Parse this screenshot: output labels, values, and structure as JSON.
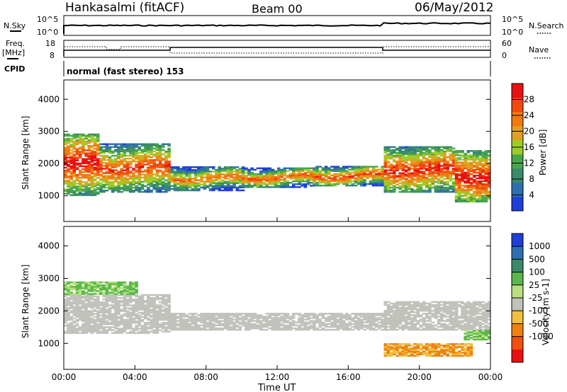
{
  "header": {
    "station": "Hankasalmi (fitACF)",
    "beam": "Beam 00",
    "date": "06/May/2012"
  },
  "noise_panel": {
    "left_label": "N.Sky",
    "left_ticks": [
      "10^5",
      "10^0"
    ],
    "right_ticks": [
      "10^5",
      "10^0"
    ],
    "right_label": "N.Search"
  },
  "freq_panel": {
    "left_label_line1": "Freq.",
    "left_label_line2": "[MHz]",
    "left_ticks": [
      "18",
      "8"
    ],
    "right_ticks": [
      "60",
      "0"
    ],
    "right_label": "Nave",
    "cpid_label": "CPID",
    "cpid_text": "normal (fast stereo) 153"
  },
  "x_axis": {
    "ticks": [
      "00:00",
      "04:00",
      "08:00",
      "12:00",
      "16:00",
      "20:00",
      "00:00"
    ],
    "label": "Time UT"
  },
  "colors": {
    "power": [
      "#1f3fd8",
      "#2f6fb0",
      "#3a8a6a",
      "#4aa64a",
      "#9ccc2a",
      "#e0a020",
      "#f07a10",
      "#f04a10",
      "#e81010"
    ],
    "velocity_gray": "#c2c2bc",
    "velocity": [
      "#e81010",
      "#f05010",
      "#f08010",
      "#f0c040",
      "#c2c2bc",
      "#b8e080",
      "#5ab84a",
      "#3a8a6a",
      "#2f6fb0",
      "#1f3fd8"
    ]
  },
  "chart_data": [
    {
      "type": "heatmap",
      "title": "Power",
      "ylabel": "Slant Range [km]",
      "ylim": [
        200,
        4600
      ],
      "yticks": [
        1000,
        2000,
        3000,
        4000
      ],
      "xlim": [
        0,
        24
      ],
      "colorbar": {
        "label": "Power [dB]",
        "ticks": [
          4,
          8,
          12,
          16,
          20,
          24,
          28
        ],
        "range": [
          0,
          32
        ]
      },
      "echo_bands": [
        {
          "t0": 0.0,
          "t1": 2.0,
          "lo": 1000,
          "hi": 2900,
          "power": 22
        },
        {
          "t0": 2.0,
          "t1": 6.0,
          "lo": 1100,
          "hi": 2600,
          "power": 18
        },
        {
          "t0": 6.0,
          "t1": 10.0,
          "lo": 1150,
          "hi": 1900,
          "power": 14
        },
        {
          "t0": 10.0,
          "t1": 14.0,
          "lo": 1250,
          "hi": 1850,
          "power": 16
        },
        {
          "t0": 14.0,
          "t1": 18.0,
          "lo": 1300,
          "hi": 1900,
          "power": 18
        },
        {
          "t0": 18.0,
          "t1": 22.0,
          "lo": 1100,
          "hi": 2500,
          "power": 20
        },
        {
          "t0": 22.0,
          "t1": 24.0,
          "lo": 800,
          "hi": 2400,
          "power": 22
        }
      ]
    },
    {
      "type": "heatmap",
      "title": "Velocity",
      "ylabel": "Slant Range [km]",
      "ylim": [
        200,
        4600
      ],
      "yticks": [
        1000,
        2000,
        3000,
        4000
      ],
      "xlim": [
        0,
        24
      ],
      "colorbar": {
        "label": "Velocity [m s-1]",
        "ticks": [
          1000,
          500,
          100,
          25,
          -25,
          -100,
          -500,
          -1000
        ]
      },
      "echo_bands": [
        {
          "t0": 0.0,
          "t1": 6.0,
          "lo": 1300,
          "hi": 2500,
          "velocity": 0
        },
        {
          "t0": 0.0,
          "t1": 4.0,
          "lo": 2500,
          "hi": 2900,
          "velocity": 300
        },
        {
          "t0": 6.0,
          "t1": 18.0,
          "lo": 1400,
          "hi": 1900,
          "velocity": 0
        },
        {
          "t0": 18.0,
          "t1": 24.0,
          "lo": 1400,
          "hi": 2300,
          "velocity": 0
        },
        {
          "t0": 22.5,
          "t1": 24.0,
          "lo": 1100,
          "hi": 1400,
          "velocity": 200
        },
        {
          "t0": 18.0,
          "t1": 23.0,
          "lo": 600,
          "hi": 1000,
          "velocity": -150
        }
      ]
    }
  ]
}
